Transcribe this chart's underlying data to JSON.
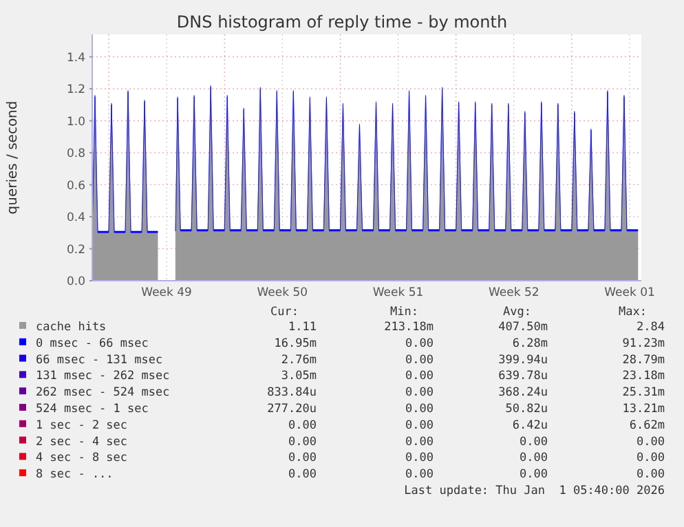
{
  "chart_data": {
    "type": "area",
    "stacked": true,
    "title": "DNS histogram of reply time - by month",
    "ylabel": "queries / second",
    "xlim": [
      "2025-11-30T00:00",
      "2026-01-02T05:00"
    ],
    "xticks": [
      {
        "value": "2025-12-01",
        "label": null
      },
      {
        "value": "2025-12-04T12:00",
        "label": "Week 49"
      },
      {
        "value": "2025-12-08",
        "label": null
      },
      {
        "value": "2025-12-11T12:00",
        "label": "Week 50"
      },
      {
        "value": "2025-12-15",
        "label": null
      },
      {
        "value": "2025-12-18T12:00",
        "label": "Week 51"
      },
      {
        "value": "2025-12-22",
        "label": null
      },
      {
        "value": "2025-12-25T12:00",
        "label": "Week 52"
      },
      {
        "value": "2025-12-29",
        "label": null
      },
      {
        "value": "2026-01-01T12:00",
        "label": "Week 01"
      }
    ],
    "ylim": [
      0,
      1.54
    ],
    "yticks": [
      {
        "value": 0,
        "label": "0.0"
      },
      {
        "value": 0.2,
        "label": "0.2"
      },
      {
        "value": 0.4,
        "label": "0.4"
      },
      {
        "value": 0.6,
        "label": "0.6"
      },
      {
        "value": 0.8,
        "label": "0.8"
      },
      {
        "value": 1.0,
        "label": "1.0"
      },
      {
        "value": 1.2,
        "label": "1.2"
      },
      {
        "value": 1.4,
        "label": "1.4"
      }
    ],
    "grid": true,
    "legend": "bottom",
    "x": [
      "2025-11-30T00:00",
      "2025-11-30T04:00",
      "2025-11-30T08:00",
      "2025-12-01T00:00",
      "2025-12-01T04:00",
      "2025-12-01T08:00",
      "2025-12-02T00:00",
      "2025-12-02T04:00",
      "2025-12-02T08:00",
      "2025-12-03T00:00",
      "2025-12-03T04:00",
      "2025-12-03T08:00",
      "2025-12-03T23:00",
      "2025-12-04T12:00",
      "2025-12-05T01:00",
      "2025-12-05T04:00",
      "2025-12-05T08:00",
      "2025-12-06T00:00",
      "2025-12-06T04:00",
      "2025-12-06T08:00",
      "2025-12-07T00:00",
      "2025-12-07T04:00",
      "2025-12-07T08:00",
      "2025-12-08T00:00",
      "2025-12-08T04:00",
      "2025-12-08T08:00",
      "2025-12-09T00:00",
      "2025-12-09T04:00",
      "2025-12-09T08:00",
      "2025-12-10T00:00",
      "2025-12-10T04:00",
      "2025-12-10T08:00",
      "2025-12-11T00:00",
      "2025-12-11T04:00",
      "2025-12-11T08:00",
      "2025-12-12T00:00",
      "2025-12-12T04:00",
      "2025-12-12T08:00",
      "2025-12-13T00:00",
      "2025-12-13T04:00",
      "2025-12-13T08:00",
      "2025-12-14T00:00",
      "2025-12-14T04:00",
      "2025-12-14T08:00",
      "2025-12-15T00:00",
      "2025-12-15T04:00",
      "2025-12-15T08:00",
      "2025-12-16T00:00",
      "2025-12-16T04:00",
      "2025-12-16T08:00",
      "2025-12-17T00:00",
      "2025-12-17T04:00",
      "2025-12-17T08:00",
      "2025-12-18T00:00",
      "2025-12-18T04:00",
      "2025-12-18T08:00",
      "2025-12-19T00:00",
      "2025-12-19T04:00",
      "2025-12-19T08:00",
      "2025-12-20T00:00",
      "2025-12-20T04:00",
      "2025-12-20T08:00",
      "2025-12-21T00:00",
      "2025-12-21T04:00",
      "2025-12-21T08:00",
      "2025-12-22T00:00",
      "2025-12-22T04:00",
      "2025-12-22T08:00",
      "2025-12-23T00:00",
      "2025-12-23T04:00",
      "2025-12-23T08:00",
      "2025-12-24T00:00",
      "2025-12-24T04:00",
      "2025-12-24T08:00",
      "2025-12-25T00:00",
      "2025-12-25T04:00",
      "2025-12-25T08:00",
      "2025-12-26T00:00",
      "2025-12-26T04:00",
      "2025-12-26T08:00",
      "2025-12-27T00:00",
      "2025-12-27T04:00",
      "2025-12-27T08:00",
      "2025-12-28T00:00",
      "2025-12-28T04:00",
      "2025-12-28T08:00",
      "2025-12-29T00:00",
      "2025-12-29T04:00",
      "2025-12-29T08:00",
      "2025-12-30T00:00",
      "2025-12-30T04:00",
      "2025-12-30T08:00",
      "2025-12-31T00:00",
      "2025-12-31T04:00",
      "2025-12-31T08:00",
      "2026-01-01T00:00",
      "2026-01-01T04:00",
      "2026-01-01T08:00",
      "2026-01-02T00:00"
    ],
    "series": [
      {
        "name": "cache hits",
        "color": "#999999",
        "values": [
          0.3,
          1.15,
          0.3,
          0.3,
          1.1,
          0.3,
          0.3,
          1.18,
          0.3,
          0.3,
          1.12,
          0.3,
          0.3,
          null,
          0.31,
          1.14,
          0.31,
          0.31,
          1.15,
          0.31,
          0.31,
          1.21,
          0.31,
          0.31,
          1.15,
          0.31,
          0.31,
          1.07,
          0.31,
          0.31,
          1.2,
          0.31,
          0.31,
          1.18,
          0.31,
          0.31,
          1.18,
          0.31,
          0.31,
          1.14,
          0.31,
          0.31,
          1.14,
          0.31,
          0.31,
          1.1,
          0.31,
          0.31,
          0.97,
          0.31,
          0.31,
          1.11,
          0.31,
          0.31,
          1.1,
          0.31,
          0.31,
          1.18,
          0.31,
          0.31,
          1.15,
          0.31,
          0.31,
          1.2,
          0.31,
          0.31,
          1.11,
          0.31,
          0.31,
          1.11,
          0.31,
          0.31,
          1.1,
          0.31,
          0.31,
          1.1,
          0.31,
          0.31,
          1.05,
          0.31,
          0.31,
          1.11,
          0.31,
          0.31,
          1.1,
          0.31,
          0.31,
          1.05,
          0.31,
          0.31,
          0.94,
          0.31,
          0.31,
          1.18,
          0.31,
          0.31,
          1.15,
          0.31,
          0.31
        ]
      },
      {
        "name": "0 msec - 66 msec",
        "color": "#0000ff",
        "values": [
          0.01,
          0.01,
          0.01,
          0.01,
          0.01,
          0.01,
          0.01,
          0.01,
          0.01,
          0.01,
          0.01,
          0.01,
          0.01,
          null,
          0.01,
          0.01,
          0.01,
          0.01,
          0.01,
          0.01,
          0.01,
          0.01,
          0.01,
          0.01,
          0.01,
          0.01,
          0.01,
          0.01,
          0.01,
          0.01,
          0.01,
          0.01,
          0.01,
          0.01,
          0.01,
          0.01,
          0.01,
          0.01,
          0.01,
          0.01,
          0.01,
          0.01,
          0.01,
          0.01,
          0.01,
          0.01,
          0.01,
          0.01,
          0.01,
          0.01,
          0.01,
          0.01,
          0.01,
          0.01,
          0.01,
          0.01,
          0.01,
          0.01,
          0.01,
          0.01,
          0.01,
          0.01,
          0.01,
          0.01,
          0.01,
          0.01,
          0.01,
          0.01,
          0.01,
          0.01,
          0.01,
          0.01,
          0.01,
          0.01,
          0.01,
          0.01,
          0.01,
          0.01,
          0.01,
          0.01,
          0.01,
          0.01,
          0.01,
          0.01,
          0.01,
          0.01,
          0.01,
          0.01,
          0.01,
          0.01,
          0.01,
          0.01,
          0.01,
          0.01,
          0.01,
          0.01,
          0.01,
          0.01,
          0.01
        ]
      },
      {
        "name": "66 msec - 131 msec",
        "color": "#1a00e0",
        "values": [
          null,
          null,
          null,
          null,
          null,
          null,
          null,
          null,
          null,
          null,
          null,
          null,
          null,
          null,
          null,
          null,
          null,
          null,
          null,
          null,
          null,
          null,
          null,
          null,
          null,
          null,
          null,
          null,
          null,
          null,
          null,
          null,
          null,
          null,
          null,
          null,
          null,
          null,
          null,
          null,
          null,
          null,
          null,
          null,
          null,
          null,
          null,
          null,
          null,
          null,
          null,
          null,
          null,
          null,
          null,
          null,
          null,
          null,
          null,
          null,
          null,
          null,
          null,
          null,
          null,
          null,
          null,
          null,
          null,
          null,
          null,
          null,
          null,
          null,
          null,
          null,
          null,
          null,
          null,
          null,
          null,
          null,
          null,
          null,
          null,
          null,
          null,
          null,
          null,
          null,
          null,
          null,
          null,
          null,
          null,
          null,
          null,
          null,
          null
        ]
      },
      {
        "name": "131 msec - 262 msec",
        "color": "#4000c0",
        "values": [
          null,
          null,
          null,
          null,
          null,
          null,
          null,
          null,
          null,
          null,
          null,
          null,
          null,
          null,
          null,
          null,
          null,
          null,
          null,
          null,
          null,
          null,
          null,
          null,
          null,
          null,
          null,
          null,
          null,
          null,
          null,
          null,
          null,
          null,
          null,
          null,
          null,
          null,
          null,
          null,
          null,
          null,
          null,
          null,
          null,
          null,
          null,
          null,
          null,
          null,
          null,
          null,
          null,
          null,
          null,
          null,
          null,
          null,
          null,
          null,
          null,
          null,
          null,
          null,
          null,
          null,
          null,
          null,
          null,
          null,
          null,
          null,
          null,
          null,
          null,
          null,
          null,
          null,
          null,
          null,
          null,
          null,
          null,
          null,
          null,
          null,
          null,
          null,
          null,
          null,
          null,
          null,
          null,
          null,
          null,
          null,
          null,
          null,
          null
        ]
      },
      {
        "name": "262 msec - 524 msec",
        "color": "#6000a0",
        "values": [
          null,
          null,
          null,
          null,
          null,
          null,
          null,
          null,
          null,
          null,
          null,
          null,
          null,
          null,
          null,
          null,
          null,
          null,
          null,
          null,
          null,
          null,
          null,
          null,
          null,
          null,
          null,
          null,
          null,
          null,
          null,
          null,
          null,
          null,
          null,
          null,
          null,
          null,
          null,
          null,
          null,
          null,
          null,
          null,
          null,
          null,
          null,
          null,
          null,
          null,
          null,
          null,
          null,
          null,
          null,
          null,
          null,
          null,
          null,
          null,
          null,
          null,
          null,
          null,
          null,
          null,
          null,
          null,
          null,
          null,
          null,
          null,
          null,
          null,
          null,
          null,
          null,
          null,
          null,
          null,
          null,
          null,
          null,
          null,
          null,
          null,
          null,
          null,
          null,
          null,
          null,
          null,
          null,
          null,
          null,
          null,
          null,
          null,
          null
        ]
      },
      {
        "name": "524 msec - 1 sec",
        "color": "#800080",
        "values": [
          null,
          null,
          null,
          null,
          null,
          null,
          null,
          null,
          null,
          null,
          null,
          null,
          null,
          null,
          null,
          null,
          null,
          null,
          null,
          null,
          null,
          null,
          null,
          null,
          null,
          null,
          null,
          null,
          null,
          null,
          null,
          null,
          null,
          null,
          null,
          null,
          null,
          null,
          null,
          null,
          null,
          null,
          null,
          null,
          null,
          null,
          null,
          null,
          null,
          null,
          null,
          null,
          null,
          null,
          null,
          null,
          null,
          null,
          null,
          null,
          null,
          null,
          null,
          null,
          null,
          null,
          null,
          null,
          null,
          null,
          null,
          null,
          null,
          null,
          null,
          null,
          null,
          null,
          null,
          null,
          null,
          null,
          null,
          null,
          null,
          null,
          null,
          null,
          null,
          null,
          null,
          null,
          null,
          null,
          null,
          null,
          null,
          null,
          null
        ]
      },
      {
        "name": "1 sec - 2 sec",
        "color": "#a00060",
        "values": [
          null,
          null,
          null,
          null,
          null,
          null,
          null,
          null,
          null,
          null,
          null,
          null,
          null,
          null,
          null,
          null,
          null,
          null,
          null,
          null,
          null,
          null,
          null,
          null,
          null,
          null,
          null,
          null,
          null,
          null,
          null,
          null,
          null,
          null,
          null,
          null,
          null,
          null,
          null,
          null,
          null,
          null,
          null,
          null,
          null,
          null,
          null,
          null,
          null,
          null,
          null,
          null,
          null,
          null,
          null,
          null,
          null,
          null,
          null,
          null,
          null,
          null,
          null,
          null,
          null,
          null,
          null,
          null,
          null,
          null,
          null,
          null,
          null,
          null,
          null,
          null,
          null,
          null,
          null,
          null,
          null,
          null,
          null,
          null,
          null,
          null,
          null,
          null,
          null,
          null,
          null,
          null,
          null,
          null,
          null,
          null,
          null,
          null,
          null
        ]
      },
      {
        "name": "2 sec - 4 sec",
        "color": "#c00040",
        "values": [
          null,
          null,
          null,
          null,
          null,
          null,
          null,
          null,
          null,
          null,
          null,
          null,
          null,
          null,
          null,
          null,
          null,
          null,
          null,
          null,
          null,
          null,
          null,
          null,
          null,
          null,
          null,
          null,
          null,
          null,
          null,
          null,
          null,
          null,
          null,
          null,
          null,
          null,
          null,
          null,
          null,
          null,
          null,
          null,
          null,
          null,
          null,
          null,
          null,
          null,
          null,
          null,
          null,
          null,
          null,
          null,
          null,
          null,
          null,
          null,
          null,
          null,
          null,
          null,
          null,
          null,
          null,
          null,
          null,
          null,
          null,
          null,
          null,
          null,
          null,
          null,
          null,
          null,
          null,
          null,
          null,
          null,
          null,
          null,
          null,
          null,
          null,
          null,
          null,
          null,
          null,
          null,
          null,
          null,
          null,
          null,
          null,
          null,
          null
        ]
      },
      {
        "name": "4 sec - 8 sec",
        "color": "#e00020",
        "values": [
          null,
          null,
          null,
          null,
          null,
          null,
          null,
          null,
          null,
          null,
          null,
          null,
          null,
          null,
          null,
          null,
          null,
          null,
          null,
          null,
          null,
          null,
          null,
          null,
          null,
          null,
          null,
          null,
          null,
          null,
          null,
          null,
          null,
          null,
          null,
          null,
          null,
          null,
          null,
          null,
          null,
          null,
          null,
          null,
          null,
          null,
          null,
          null,
          null,
          null,
          null,
          null,
          null,
          null,
          null,
          null,
          null,
          null,
          null,
          null,
          null,
          null,
          null,
          null,
          null,
          null,
          null,
          null,
          null,
          null,
          null,
          null,
          null,
          null,
          null,
          null,
          null,
          null,
          null,
          null,
          null,
          null,
          null,
          null,
          null,
          null,
          null,
          null,
          null,
          null,
          null,
          null,
          null,
          null,
          null,
          null,
          null,
          null,
          null
        ]
      },
      {
        "name": "8 sec - ...",
        "color": "#ff0000",
        "values": [
          null,
          null,
          null,
          null,
          null,
          null,
          null,
          null,
          null,
          null,
          null,
          null,
          null,
          null,
          null,
          null,
          null,
          null,
          null,
          null,
          null,
          null,
          null,
          null,
          null,
          null,
          null,
          null,
          null,
          null,
          null,
          null,
          null,
          null,
          null,
          null,
          null,
          null,
          null,
          null,
          null,
          null,
          null,
          null,
          null,
          null,
          null,
          null,
          null,
          null,
          null,
          null,
          null,
          null,
          null,
          null,
          null,
          null,
          null,
          null,
          null,
          null,
          null,
          null,
          null,
          null,
          null,
          null,
          null,
          null,
          null,
          null,
          null,
          null,
          null,
          null,
          null,
          null,
          null,
          null,
          null,
          null,
          null,
          null,
          null,
          null,
          null,
          null,
          null,
          null,
          null,
          null,
          null,
          null,
          null,
          null,
          null,
          null,
          null
        ]
      }
    ],
    "annotations": [
      "Cur:",
      "Min:",
      "Avg:",
      "Max:",
      "1.11",
      "213.18m",
      "407.50m",
      "2.84",
      "16.95m",
      "0.00",
      "6.28m",
      "91.23m",
      "2.76m",
      "0.00",
      "399.94u",
      "28.79m",
      "3.05m",
      "0.00",
      "639.78u",
      "23.18m",
      "833.84u",
      "0.00",
      "368.24u",
      "25.31m",
      "277.20u",
      "0.00",
      "50.82u",
      "13.21m",
      "0.00",
      "0.00",
      "6.42u",
      "6.62m",
      "0.00",
      "0.00",
      "0.00",
      "0.00",
      "0.00",
      "0.00",
      "0.00",
      "0.00",
      "0.00",
      "0.00",
      "0.00",
      "0.00",
      "Last update: Thu Jan  1 05:40:00 2026"
    ]
  }
}
